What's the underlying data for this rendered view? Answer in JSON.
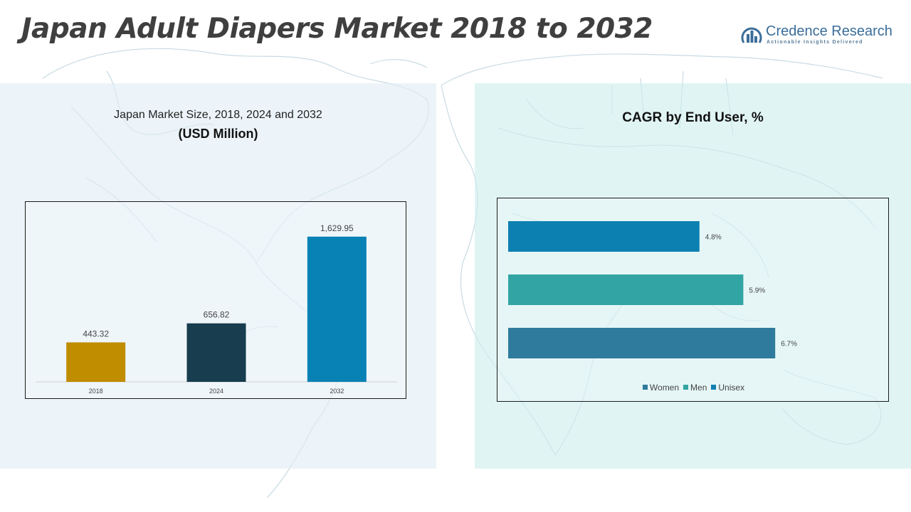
{
  "title": "Japan Adult Diapers Market 2018 to 2032",
  "logo": {
    "name": "Credence Research",
    "tagline": "Actionable Insights Delivered",
    "mark_icon": "bar-chart-arc-icon"
  },
  "colors": {
    "title": "#3f3f3f",
    "logo": "#3a6d9a",
    "panel_left": "#e0eef6",
    "panel_right": "#cfeeee",
    "map_lines": "#c8dbe3"
  },
  "market_size": {
    "title_line1": "Japan Market Size, 2018, 2024 and 2032",
    "title_line2": "(USD Million)"
  },
  "cagr": {
    "title": "CAGR by End User, %"
  },
  "chart_data": [
    {
      "type": "bar",
      "categories": [
        "2018",
        "2024",
        "2032"
      ],
      "values": [
        443.32,
        656.82,
        1629.95
      ],
      "value_labels": [
        "443.32",
        "656.82",
        "1,629.95"
      ],
      "colors": [
        "#c08c00",
        "#173d4e",
        "#0882b5"
      ],
      "ylim": [
        0,
        1700
      ],
      "grid": false,
      "legend": "none"
    },
    {
      "type": "bar",
      "orientation": "horizontal",
      "categories": [
        "Unisex",
        "Men",
        "Women"
      ],
      "values": [
        4.8,
        5.9,
        6.7
      ],
      "value_labels": [
        "4.8%",
        "5.9%",
        "6.7%"
      ],
      "colors": [
        "#0d80b2",
        "#33a4a4",
        "#2e7b9d"
      ],
      "xlim": [
        0,
        8
      ],
      "grid": false,
      "legend": "bottom",
      "legend_entries": [
        {
          "name": "Women",
          "color": "#2e7b9d"
        },
        {
          "name": "Men",
          "color": "#33a4a4"
        },
        {
          "name": "Unisex",
          "color": "#0d80b2"
        }
      ]
    }
  ]
}
